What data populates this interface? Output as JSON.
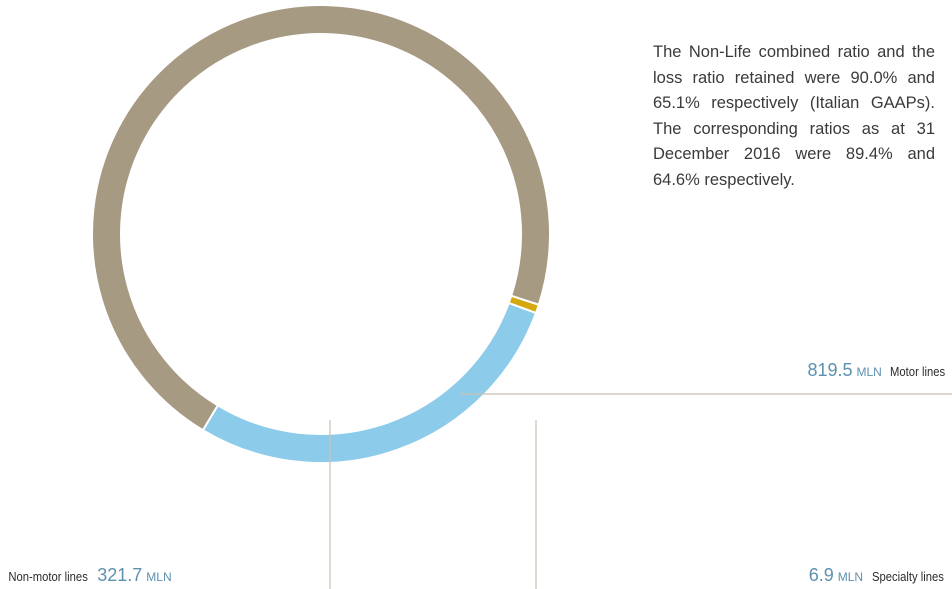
{
  "paragraph": "The Non-Life combined ratio and the loss ratio retained were 90.0% and 65.1% respectively (Italian GAAPs). The correspon­ding ratios as at 31 December 2016 were 89.4% and 64.6% respectively.",
  "colors": {
    "motor": "#a79a83",
    "non_motor": "#8dcbeb",
    "specialty": "#d5a80d",
    "leader": "#c9c2b3",
    "value_text": "#5c91b0"
  },
  "chart_data": {
    "type": "pie",
    "variant": "donut",
    "start_angle_deg": 18,
    "direction": "counterclockwise",
    "slices": [
      {
        "name": "Motor lines",
        "value": 819.5,
        "value_label": "819.5",
        "unit": "MLN",
        "color": "#a79a83"
      },
      {
        "name": "Non-motor lines",
        "value": 321.7,
        "value_label": "321.7",
        "unit": "MLN",
        "color": "#8dcbeb"
      },
      {
        "name": "Specialty lines",
        "value": 6.9,
        "value_label": "6.9",
        "unit": "MLN",
        "color": "#d5a80d"
      }
    ]
  },
  "labels": {
    "motor": {
      "value": "819.5",
      "unit": "MLN",
      "name": "Motor lines"
    },
    "specialty": {
      "value": "6.9",
      "unit": "MLN",
      "name": "Specialty lines"
    },
    "non_motor": {
      "name": "Non-motor lines",
      "value": "321.7",
      "unit": "MLN"
    }
  }
}
